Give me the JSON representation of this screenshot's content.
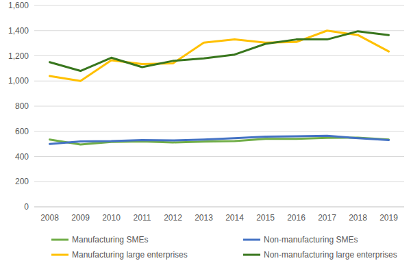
{
  "chart_data": {
    "type": "line",
    "categories": [
      "2008",
      "2009",
      "2010",
      "2011",
      "2012",
      "2013",
      "2014",
      "2015",
      "2016",
      "2017",
      "2018",
      "2019"
    ],
    "series": [
      {
        "name": "Manufacturing SMEs",
        "color": "#70ad47",
        "values": [
          535,
          495,
          515,
          520,
          512,
          518,
          522,
          540,
          540,
          548,
          550,
          535
        ]
      },
      {
        "name": "Non-manufacturing SMEs",
        "color": "#4472c4",
        "values": [
          500,
          520,
          522,
          530,
          528,
          535,
          545,
          558,
          560,
          565,
          545,
          530
        ]
      },
      {
        "name": "Manufacturing large enterprises",
        "color": "#ffc000",
        "values": [
          1040,
          1000,
          1165,
          1135,
          1140,
          1305,
          1330,
          1305,
          1310,
          1400,
          1365,
          1235
        ]
      },
      {
        "name": "Non-manufacturing large enterprises",
        "color": "#38761d",
        "values": [
          1150,
          1080,
          1185,
          1110,
          1160,
          1180,
          1210,
          1295,
          1330,
          1330,
          1395,
          1365
        ]
      }
    ],
    "ylim": [
      0,
      1600
    ],
    "yticks": [
      0,
      200,
      400,
      600,
      800,
      {
        "value": 1000,
        "label": "1,000"
      },
      {
        "value": 1200,
        "label": "1,200"
      },
      {
        "value": 1400,
        "label": "1,400"
      },
      {
        "value": 1600,
        "label": "1,600"
      }
    ],
    "grid": true,
    "legend": "bottom"
  }
}
